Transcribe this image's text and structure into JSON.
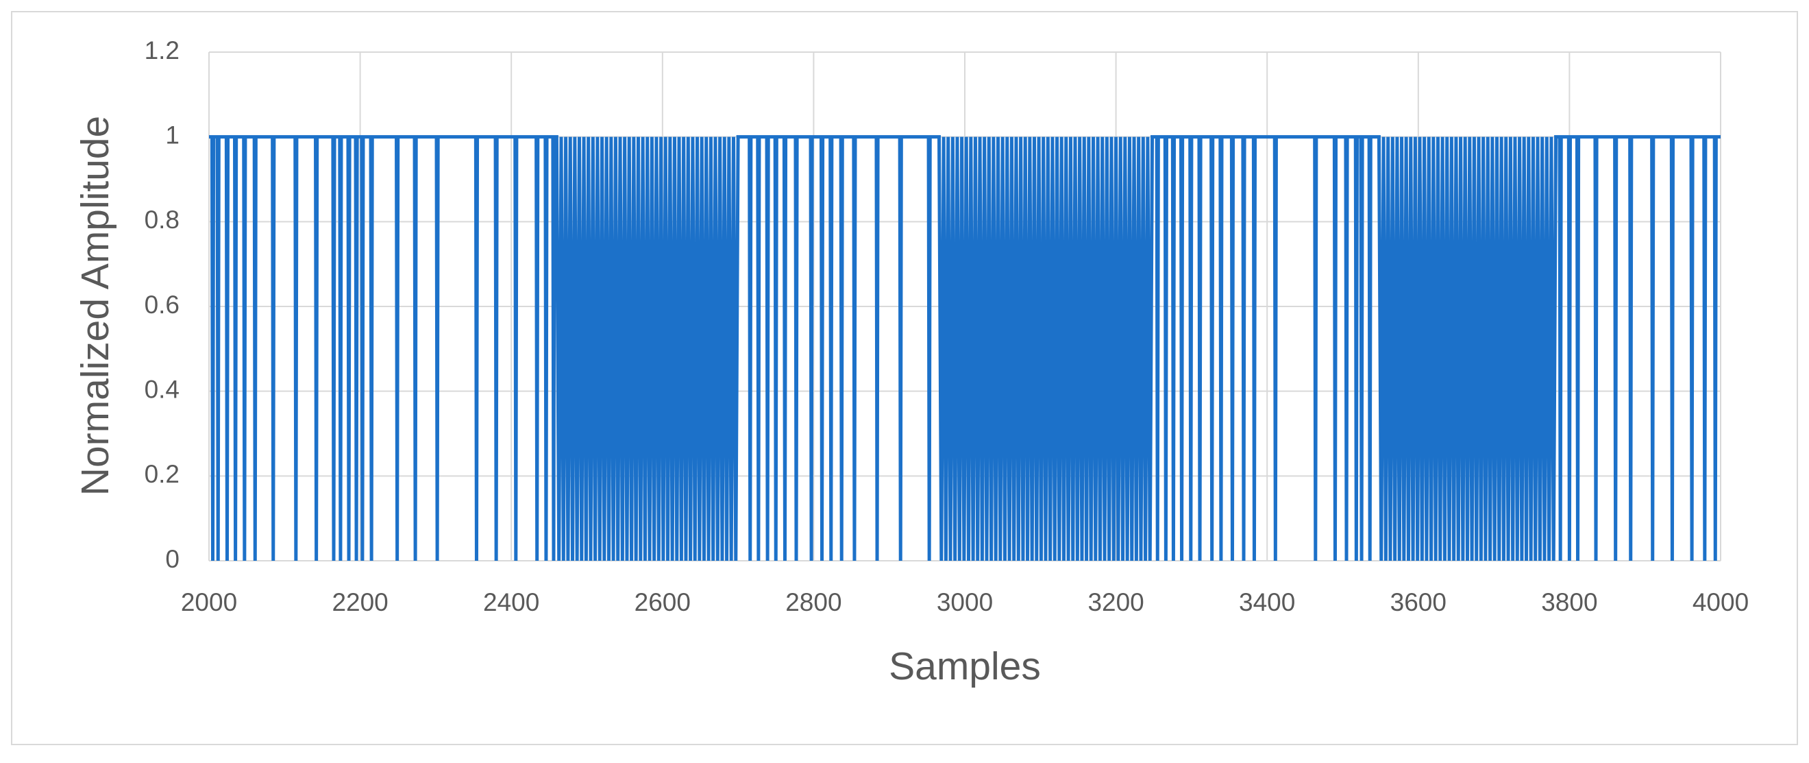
{
  "chart_data": {
    "type": "line",
    "x_label": "Samples",
    "y_label": "Normalized Amplitude",
    "xlim": [
      2000,
      4000
    ],
    "xticks": [
      2000,
      2200,
      2400,
      2600,
      2800,
      3000,
      3200,
      3400,
      3600,
      3800,
      4000
    ],
    "ylim": [
      0,
      1.2
    ],
    "yticks": [
      0,
      0.2,
      0.4,
      0.6,
      0.8,
      1,
      1.2
    ],
    "grid": true,
    "color": "#1c71c9",
    "x": [
      2000,
      2004,
      2005,
      2006,
      2011,
      2012,
      2013,
      2023,
      2024,
      2025,
      2034,
      2035,
      2036,
      2046,
      2047,
      2048,
      2060,
      2061,
      2062,
      2084,
      2085,
      2086,
      2114,
      2115,
      2116,
      2141,
      2142,
      2143,
      2164,
      2165,
      2166,
      2173,
      2174,
      2175,
      2184,
      2185,
      2186,
      2194,
      2195,
      2196,
      2202,
      2203,
      2204,
      2214,
      2215,
      2216,
      2248,
      2249,
      2250,
      2272,
      2273,
      2274,
      2301,
      2302,
      2303,
      2353,
      2354,
      2355,
      2379,
      2380,
      2381,
      2405,
      2406,
      2407,
      2433,
      2434,
      2435,
      2445,
      2446,
      2447,
      2455,
      2456,
      2457,
      2460,
      2463,
      2466,
      2469,
      2472,
      2475,
      2478,
      2481,
      2484,
      2487,
      2490,
      2493,
      2496,
      2499,
      2502,
      2505,
      2508,
      2511,
      2514,
      2517,
      2520,
      2523,
      2526,
      2529,
      2532,
      2535,
      2538,
      2541,
      2544,
      2547,
      2550,
      2553,
      2556,
      2559,
      2562,
      2565,
      2568,
      2571,
      2574,
      2577,
      2580,
      2583,
      2586,
      2589,
      2592,
      2595,
      2598,
      2601,
      2604,
      2607,
      2610,
      2613,
      2616,
      2619,
      2622,
      2625,
      2628,
      2631,
      2634,
      2637,
      2640,
      2643,
      2646,
      2649,
      2652,
      2655,
      2658,
      2661,
      2664,
      2667,
      2670,
      2673,
      2676,
      2679,
      2682,
      2685,
      2688,
      2691,
      2694,
      2697,
      2700,
      2715,
      2716,
      2717,
      2726,
      2727,
      2728,
      2738,
      2739,
      2740,
      2749,
      2750,
      2751,
      2761,
      2762,
      2763,
      2776,
      2777,
      2778,
      2796,
      2797,
      2798,
      2810,
      2811,
      2812,
      2822,
      2823,
      2824,
      2836,
      2837,
      2838,
      2853,
      2854,
      2855,
      2883,
      2884,
      2885,
      2914,
      2915,
      2916,
      2952,
      2953,
      2954,
      2966,
      2969,
      2972,
      2975,
      2978,
      2981,
      2984,
      2987,
      2990,
      2993,
      2996,
      2999,
      3002,
      3005,
      3008,
      3011,
      3014,
      3017,
      3020,
      3023,
      3026,
      3029,
      3032,
      3035,
      3038,
      3041,
      3044,
      3047,
      3050,
      3053,
      3056,
      3059,
      3062,
      3065,
      3068,
      3071,
      3074,
      3077,
      3080,
      3083,
      3086,
      3089,
      3092,
      3095,
      3098,
      3101,
      3104,
      3107,
      3110,
      3113,
      3116,
      3119,
      3122,
      3125,
      3128,
      3131,
      3134,
      3137,
      3140,
      3143,
      3146,
      3149,
      3152,
      3155,
      3158,
      3161,
      3164,
      3167,
      3170,
      3173,
      3176,
      3179,
      3182,
      3185,
      3188,
      3191,
      3194,
      3197,
      3200,
      3203,
      3206,
      3209,
      3212,
      3215,
      3218,
      3221,
      3224,
      3227,
      3230,
      3233,
      3236,
      3239,
      3242,
      3245,
      3248,
      3254,
      3255,
      3256,
      3265,
      3266,
      3267,
      3275,
      3276,
      3277,
      3286,
      3287,
      3288,
      3298,
      3299,
      3300,
      3310,
      3311,
      3312,
      3326,
      3327,
      3328,
      3338,
      3339,
      3340,
      3353,
      3354,
      3355,
      3368,
      3369,
      3370,
      3382,
      3383,
      3384,
      3410,
      3411,
      3412,
      3463,
      3464,
      3465,
      3489,
      3490,
      3491,
      3504,
      3505,
      3506,
      3517,
      3518,
      3519,
      3524,
      3525,
      3526,
      3535,
      3536,
      3537,
      3548,
      3551,
      3554,
      3557,
      3560,
      3563,
      3566,
      3569,
      3572,
      3575,
      3578,
      3581,
      3584,
      3587,
      3590,
      3593,
      3596,
      3599,
      3602,
      3605,
      3608,
      3611,
      3614,
      3617,
      3620,
      3623,
      3626,
      3629,
      3632,
      3635,
      3638,
      3641,
      3644,
      3647,
      3650,
      3653,
      3656,
      3659,
      3662,
      3665,
      3668,
      3671,
      3674,
      3677,
      3680,
      3683,
      3686,
      3689,
      3692,
      3695,
      3698,
      3701,
      3704,
      3707,
      3710,
      3713,
      3716,
      3719,
      3722,
      3725,
      3728,
      3731,
      3734,
      3737,
      3740,
      3743,
      3746,
      3749,
      3752,
      3755,
      3758,
      3761,
      3764,
      3767,
      3770,
      3773,
      3776,
      3779,
      3782,
      3787,
      3788,
      3789,
      3799,
      3800,
      3801,
      3810,
      3811,
      3812,
      3834,
      3835,
      3836,
      3860,
      3861,
      3862,
      3880,
      3881,
      3882,
      3909,
      3910,
      3911,
      3935,
      3936,
      3937,
      3961,
      3962,
      3963,
      3978,
      3979,
      3980,
      3992,
      3993,
      3994,
      4000
    ],
    "values": [
      1,
      1,
      0,
      1,
      1,
      0,
      1,
      1,
      0,
      1,
      1,
      0,
      1,
      1,
      0,
      1,
      1,
      0,
      1,
      1,
      0,
      1,
      1,
      0,
      1,
      1,
      0,
      1,
      1,
      0,
      1,
      1,
      0,
      1,
      1,
      0,
      1,
      1,
      0,
      1,
      1,
      0,
      1,
      1,
      0,
      1,
      1,
      0,
      1,
      1,
      0,
      1,
      1,
      0,
      1,
      1,
      0,
      1,
      1,
      0,
      1,
      1,
      0,
      1,
      1,
      0,
      1,
      1,
      0,
      1,
      1,
      0,
      1,
      1,
      0,
      1,
      0,
      1,
      0,
      1,
      0,
      1,
      0,
      1,
      0,
      1,
      0,
      1,
      0,
      1,
      0,
      1,
      0,
      1,
      0,
      1,
      0,
      1,
      0,
      1,
      0,
      1,
      0,
      1,
      0,
      1,
      0,
      1,
      0,
      1,
      0,
      1,
      0,
      1,
      0,
      1,
      0,
      1,
      0,
      1,
      0,
      1,
      0,
      1,
      0,
      1,
      0,
      1,
      0,
      1,
      0,
      1,
      0,
      1,
      0,
      1,
      0,
      1,
      0,
      1,
      0,
      1,
      0,
      1,
      0,
      1,
      0,
      1,
      0,
      1,
      0,
      1,
      0,
      1,
      1,
      0,
      1,
      1,
      0,
      1,
      1,
      0,
      1,
      1,
      0,
      1,
      1,
      0,
      1,
      1,
      0,
      1,
      1,
      0,
      1,
      1,
      0,
      1,
      1,
      0,
      1,
      1,
      0,
      1,
      1,
      0,
      1,
      1,
      0,
      1,
      1,
      0,
      1,
      1,
      0,
      1,
      1,
      0,
      1,
      0,
      1,
      0,
      1,
      0,
      1,
      0,
      1,
      0,
      1,
      0,
      1,
      0,
      1,
      0,
      1,
      0,
      1,
      0,
      1,
      0,
      1,
      0,
      1,
      0,
      1,
      0,
      1,
      0,
      1,
      0,
      1,
      0,
      1,
      0,
      1,
      0,
      1,
      0,
      1,
      0,
      1,
      0,
      1,
      0,
      1,
      0,
      1,
      0,
      1,
      0,
      1,
      0,
      1,
      0,
      1,
      0,
      1,
      0,
      1,
      0,
      1,
      0,
      1,
      0,
      1,
      0,
      1,
      0,
      1,
      0,
      1,
      0,
      1,
      0,
      1,
      0,
      1,
      0,
      1,
      0,
      1,
      0,
      1,
      0,
      1,
      0,
      1,
      0,
      1,
      0,
      1,
      1,
      0,
      1,
      1,
      0,
      1,
      1,
      0,
      1,
      1,
      0,
      1,
      1,
      0,
      1,
      1,
      0,
      1,
      1,
      0,
      1,
      1,
      0,
      1,
      1,
      0,
      1,
      1,
      0,
      1,
      1,
      0,
      1,
      1,
      0,
      1,
      1,
      0,
      1,
      1,
      0,
      1,
      1,
      0,
      1,
      1,
      0,
      1,
      1,
      0,
      1,
      1,
      0,
      1,
      1,
      0,
      1,
      0,
      1,
      0,
      1,
      0,
      1,
      0,
      1,
      0,
      1,
      0,
      1,
      0,
      1,
      0,
      1,
      0,
      1,
      0,
      1,
      0,
      1,
      0,
      1,
      0,
      1,
      0,
      1,
      0,
      1,
      0,
      1,
      0,
      1,
      0,
      1,
      0,
      1,
      0,
      1,
      0,
      1,
      0,
      1,
      0,
      1,
      0,
      1,
      0,
      1,
      0,
      1,
      0,
      1,
      0,
      1,
      0,
      1,
      0,
      1,
      0,
      1,
      0,
      1,
      0,
      1,
      0,
      1,
      0,
      1,
      0,
      1,
      0,
      1,
      0,
      1,
      1,
      0,
      1,
      1,
      0,
      1,
      1,
      0,
      1,
      1,
      0,
      1,
      1,
      0,
      1,
      1,
      0,
      1,
      1,
      0,
      1,
      1,
      0,
      1,
      1,
      0,
      1,
      1,
      0,
      1,
      1,
      0,
      1,
      1
    ]
  }
}
